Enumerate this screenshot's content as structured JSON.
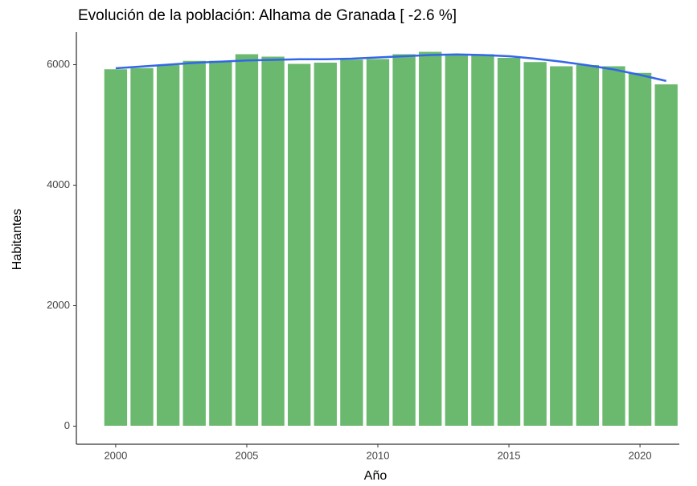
{
  "chart_data": {
    "type": "bar",
    "title": "Evolución de la población: Alhama de Granada [ -2.6 %]",
    "x_label": "Año",
    "y_label": "Habitantes",
    "x": [
      2000,
      2001,
      2002,
      2003,
      2004,
      2005,
      2006,
      2007,
      2008,
      2009,
      2010,
      2011,
      2012,
      2013,
      2014,
      2015,
      2016,
      2017,
      2018,
      2019,
      2020,
      2021
    ],
    "values": [
      5930,
      5950,
      6000,
      6070,
      6070,
      6180,
      6140,
      6020,
      6040,
      6090,
      6100,
      6180,
      6220,
      6160,
      6180,
      6120,
      6050,
      5980,
      6000,
      5980,
      5870,
      5680
    ],
    "color": "#6ab96e",
    "trend": {
      "type": "line",
      "color": "#3366e8",
      "values": [
        5940,
        5970,
        6000,
        6030,
        6050,
        6070,
        6080,
        6090,
        6090,
        6100,
        6120,
        6140,
        6160,
        6170,
        6160,
        6140,
        6100,
        6050,
        5990,
        5920,
        5830,
        5730
      ]
    },
    "xlim": [
      1998.5,
      2021.5
    ],
    "xticks": [
      2000,
      2005,
      2010,
      2015,
      2020
    ],
    "ylim": [
      -300,
      6540
    ],
    "yticks": [
      0,
      2000,
      4000,
      6000
    ],
    "grid": false
  }
}
